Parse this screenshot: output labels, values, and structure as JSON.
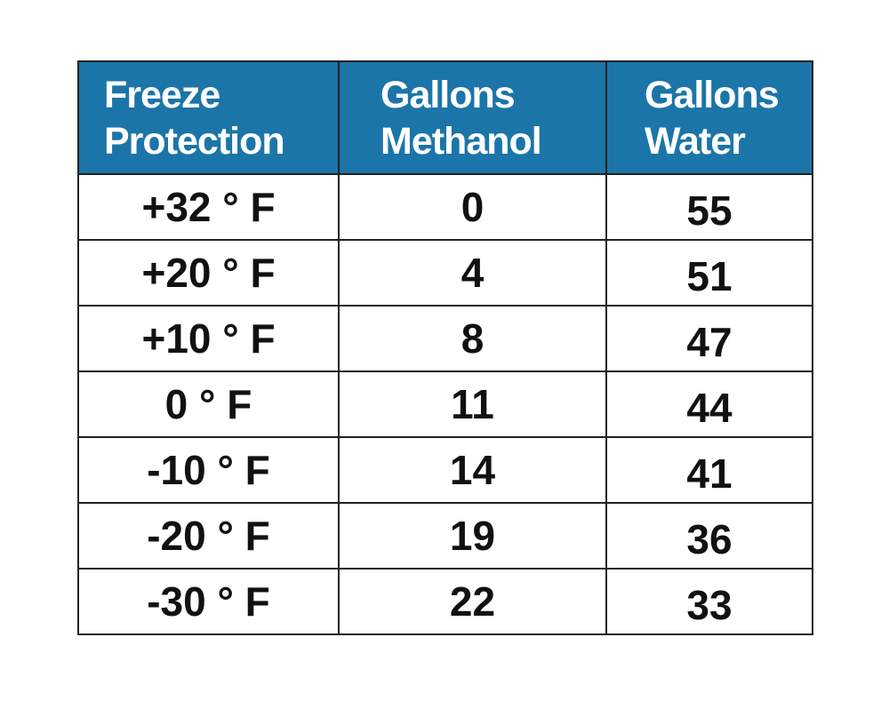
{
  "table": {
    "header": [
      "Freeze Protection",
      "Gallons Methanol",
      "Gallons Water"
    ],
    "rows": [
      [
        "+32 ° F",
        0,
        55
      ],
      [
        "+20 ° F",
        4,
        51
      ],
      [
        "+10 ° F",
        8,
        47
      ],
      [
        "0 ° F",
        11,
        44
      ],
      [
        "-10 ° F",
        14,
        41
      ],
      [
        "-20 ° F",
        19,
        36
      ],
      [
        "-30 ° F",
        22,
        33
      ]
    ]
  }
}
